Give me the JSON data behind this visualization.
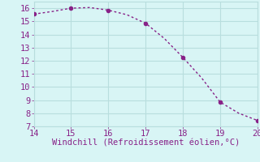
{
  "x": [
    14,
    14.5,
    15,
    15.5,
    16,
    16.5,
    17,
    17.5,
    18,
    18.5,
    19,
    19.5,
    20
  ],
  "y": [
    15.55,
    15.75,
    16.0,
    16.05,
    15.85,
    15.5,
    14.85,
    13.7,
    12.25,
    10.7,
    8.85,
    8.0,
    7.45
  ],
  "line_color": "#882288",
  "marker_x": [
    14,
    15,
    16,
    17,
    18,
    19,
    20
  ],
  "marker_y": [
    15.55,
    16.0,
    15.85,
    14.85,
    12.25,
    8.85,
    7.45
  ],
  "xlabel": "Windchill (Refroidissement éolien,°C)",
  "xlim": [
    14,
    20
  ],
  "ylim": [
    7,
    16.5
  ],
  "xticks": [
    14,
    15,
    16,
    17,
    18,
    19,
    20
  ],
  "yticks": [
    7,
    8,
    9,
    10,
    11,
    12,
    13,
    14,
    15,
    16
  ],
  "background_color": "#d8f5f5",
  "grid_color": "#b8dede",
  "text_color": "#882288",
  "font_size": 7.5
}
